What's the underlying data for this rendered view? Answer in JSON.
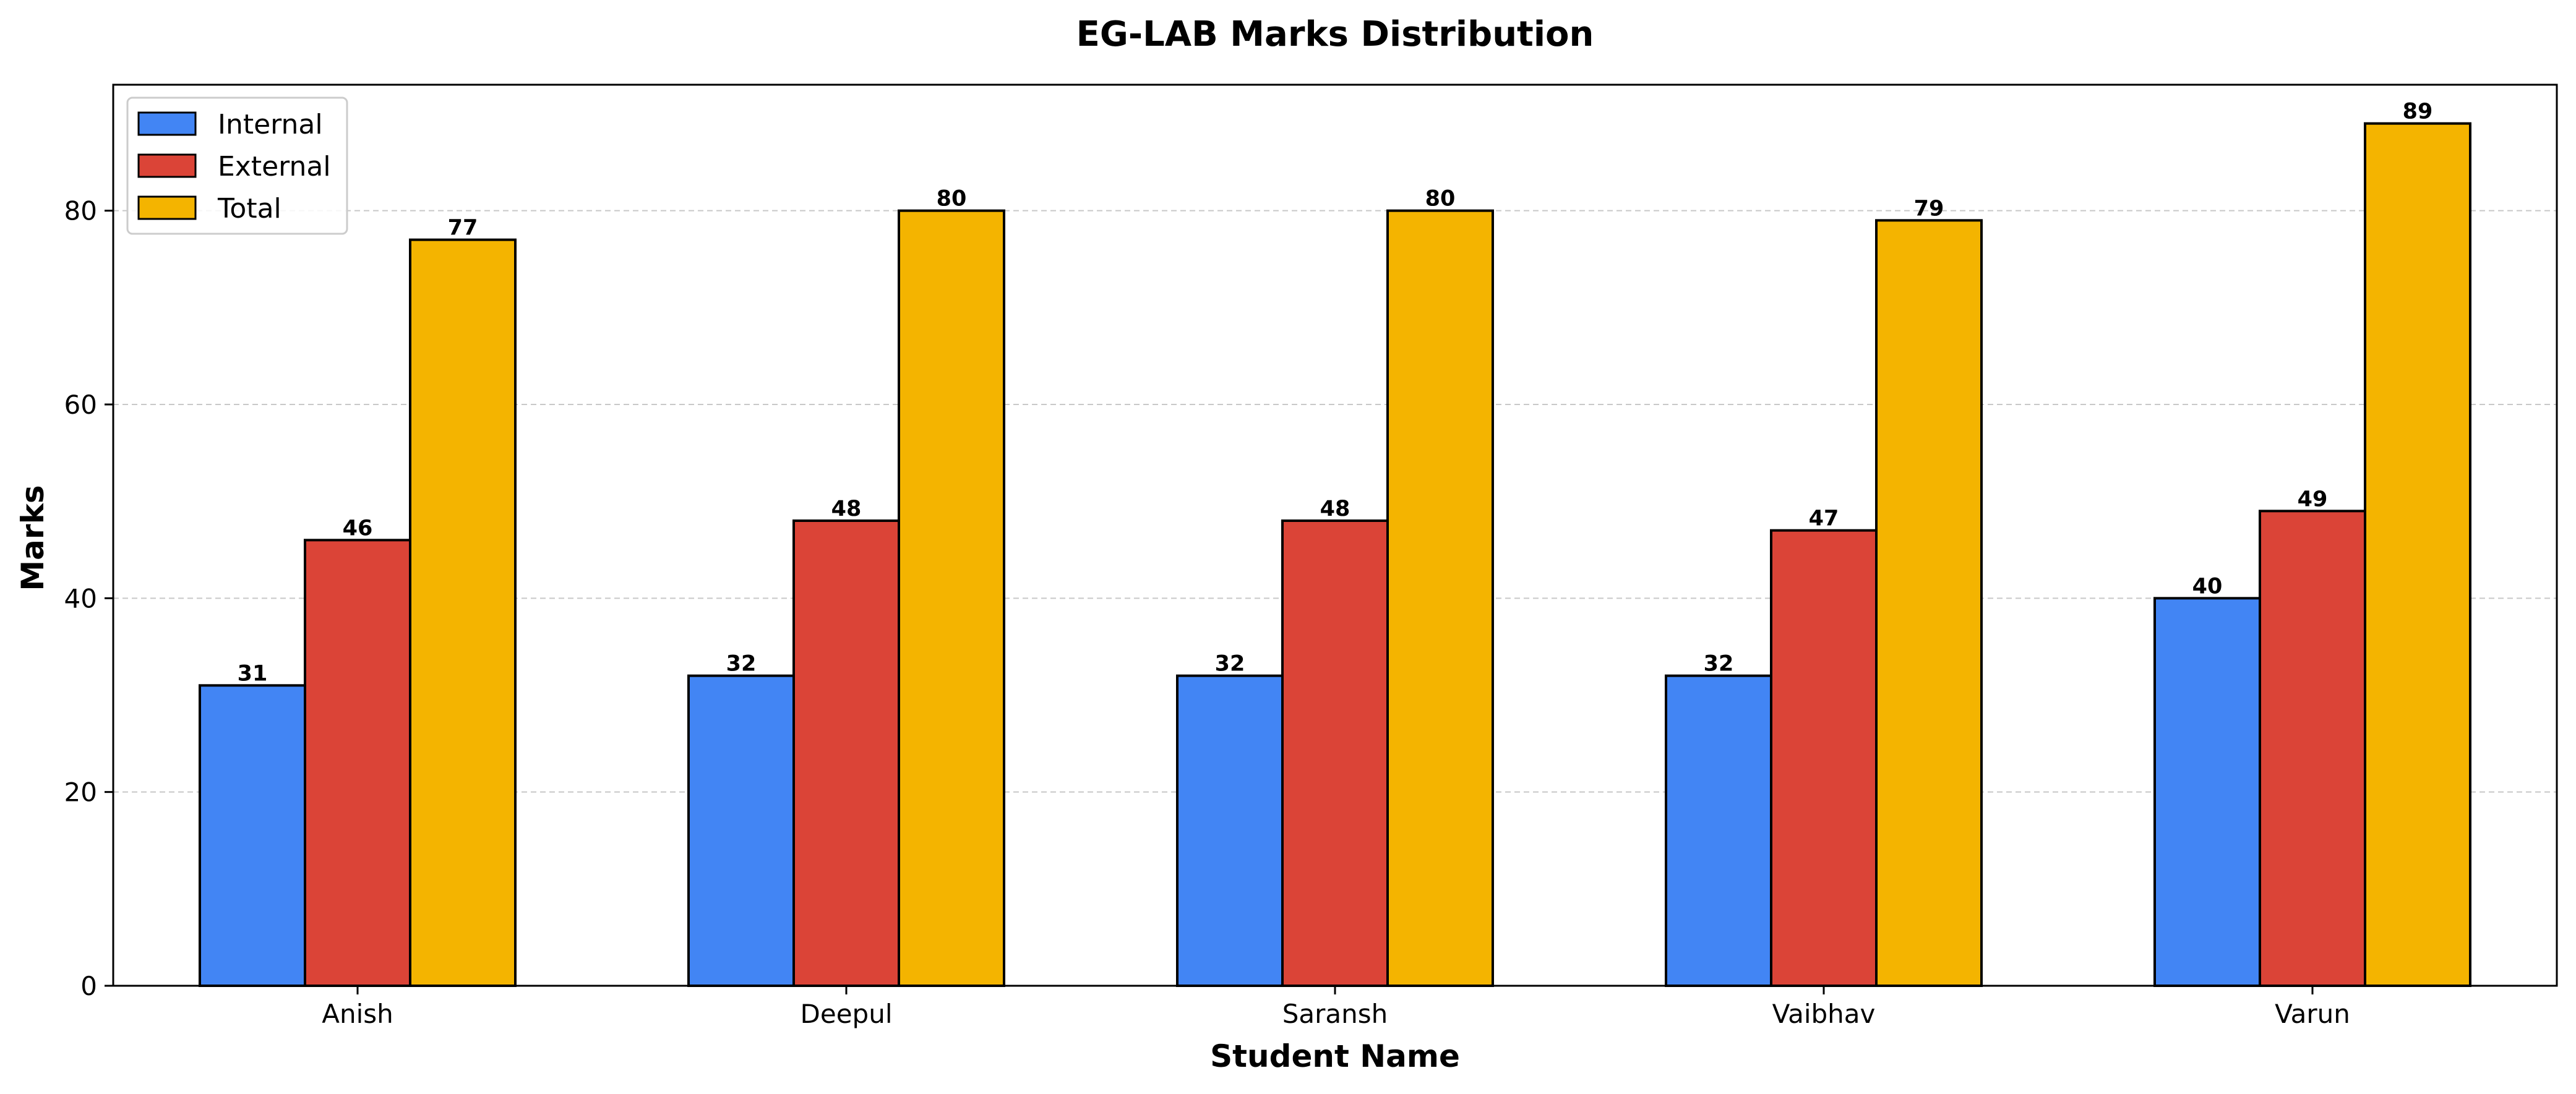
{
  "chart_data": {
    "type": "bar",
    "title": "EG-LAB Marks Distribution",
    "xlabel": "Student Name",
    "ylabel": "Marks",
    "categories": [
      "Anish",
      "Deepul",
      "Saransh",
      "Vaibhav",
      "Varun"
    ],
    "series": [
      {
        "name": "Internal",
        "values": [
          31,
          32,
          32,
          32,
          40
        ],
        "color": "#4285F4"
      },
      {
        "name": "External",
        "values": [
          46,
          48,
          48,
          47,
          49
        ],
        "color": "#DB4437"
      },
      {
        "name": "Total",
        "values": [
          77,
          80,
          80,
          79,
          89
        ],
        "color": "#F4B400"
      }
    ],
    "ylim": [
      0,
      93
    ],
    "yticks": [
      0,
      20,
      40,
      60,
      80
    ],
    "grid": "y-dashed",
    "legend_position": "top-left",
    "data_labels": true
  }
}
